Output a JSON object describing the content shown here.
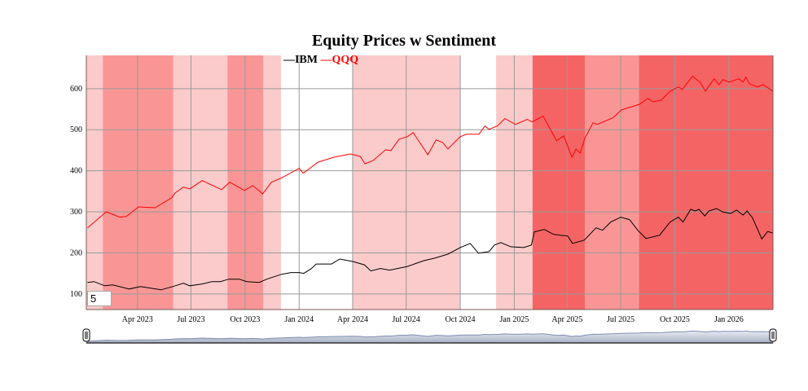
{
  "chart_data": {
    "type": "line",
    "title": "Equity Prices w Sentiment",
    "xlabel": "",
    "ylabel": "",
    "xlim": [
      "2023-01-04",
      "2026-03-17"
    ],
    "ylim": [
      62,
      681
    ],
    "yticks": [
      100,
      200,
      300,
      400,
      500,
      600
    ],
    "xticks": [
      {
        "date": "2023-04-01",
        "label": "Apr 2023"
      },
      {
        "date": "2023-07-01",
        "label": "Jul 2023"
      },
      {
        "date": "2023-10-01",
        "label": "Oct 2023"
      },
      {
        "date": "2024-01-01",
        "label": "Jan 2024"
      },
      {
        "date": "2024-04-01",
        "label": "Apr 2024"
      },
      {
        "date": "2024-07-01",
        "label": "Jul 2024"
      },
      {
        "date": "2024-10-01",
        "label": "Oct 2024"
      },
      {
        "date": "2025-01-01",
        "label": "Jan 2025"
      },
      {
        "date": "2025-04-01",
        "label": "Apr 2025"
      },
      {
        "date": "2025-07-01",
        "label": "Jul 2025"
      },
      {
        "date": "2025-10-01",
        "label": "Oct 2025"
      },
      {
        "date": "2026-01-01",
        "label": "Jan 2026"
      }
    ],
    "grid": true,
    "legend_placement": "top",
    "roll_period": "5",
    "range_selector": true,
    "sentiment_colors": {
      "low": "#facbca",
      "medium": "#f99695",
      "high": "#f56464"
    },
    "sentiment_bands": [
      {
        "start": "2023-01-04",
        "end": "2023-02-01",
        "level": "low"
      },
      {
        "start": "2023-02-01",
        "end": "2023-06-01",
        "level": "medium"
      },
      {
        "start": "2023-06-01",
        "end": "2023-09-01",
        "level": "low"
      },
      {
        "start": "2023-09-01",
        "end": "2023-11-01",
        "level": "medium"
      },
      {
        "start": "2023-11-01",
        "end": "2023-12-01",
        "level": "low"
      },
      {
        "start": "2024-04-01",
        "end": "2024-10-01",
        "level": "low"
      },
      {
        "start": "2024-12-01",
        "end": "2025-02-01",
        "level": "low"
      },
      {
        "start": "2025-02-01",
        "end": "2025-05-01",
        "level": "high"
      },
      {
        "start": "2025-05-01",
        "end": "2025-08-01",
        "level": "medium"
      },
      {
        "start": "2025-08-01",
        "end": "2026-03-17",
        "level": "high"
      }
    ],
    "series": [
      {
        "name": "IBM",
        "color": "#000000",
        "points": [
          [
            "2023-01-06",
            128
          ],
          [
            "2023-01-17",
            130
          ],
          [
            "2023-02-04",
            120
          ],
          [
            "2023-02-18",
            122
          ],
          [
            "2023-03-18",
            112
          ],
          [
            "2023-04-06",
            118
          ],
          [
            "2023-05-11",
            110
          ],
          [
            "2023-05-31",
            118
          ],
          [
            "2023-06-18",
            126
          ],
          [
            "2023-06-29",
            120
          ],
          [
            "2023-07-19",
            124
          ],
          [
            "2023-08-06",
            130
          ],
          [
            "2023-08-20",
            130
          ],
          [
            "2023-09-03",
            136
          ],
          [
            "2023-09-21",
            136
          ],
          [
            "2023-10-04",
            130
          ],
          [
            "2023-10-25",
            128
          ],
          [
            "2023-11-07",
            136
          ],
          [
            "2023-12-02",
            148
          ],
          [
            "2023-12-18",
            152
          ],
          [
            "2024-01-01",
            152
          ],
          [
            "2024-01-09",
            150
          ],
          [
            "2024-01-22",
            162
          ],
          [
            "2024-01-30",
            173
          ],
          [
            "2024-02-25",
            173
          ],
          [
            "2024-03-10",
            185
          ],
          [
            "2024-04-01",
            179
          ],
          [
            "2024-04-21",
            171
          ],
          [
            "2024-05-02",
            156
          ],
          [
            "2024-05-18",
            162
          ],
          [
            "2024-06-03",
            158
          ],
          [
            "2024-07-03",
            167
          ],
          [
            "2024-07-31",
            181
          ],
          [
            "2024-08-18",
            187
          ],
          [
            "2024-09-10",
            197
          ],
          [
            "2024-10-01",
            213
          ],
          [
            "2024-10-18",
            223
          ],
          [
            "2024-11-01",
            199
          ],
          [
            "2024-11-19",
            203
          ],
          [
            "2024-11-28",
            219
          ],
          [
            "2024-12-09",
            225
          ],
          [
            "2024-12-26",
            215
          ],
          [
            "2025-01-17",
            213
          ],
          [
            "2025-01-30",
            219
          ],
          [
            "2025-02-04",
            251
          ],
          [
            "2025-02-21",
            257
          ],
          [
            "2025-03-09",
            245
          ],
          [
            "2025-04-02",
            241
          ],
          [
            "2025-04-10",
            223
          ],
          [
            "2025-04-30",
            231
          ],
          [
            "2025-05-20",
            261
          ],
          [
            "2025-05-31",
            255
          ],
          [
            "2025-06-14",
            275
          ],
          [
            "2025-07-01",
            287
          ],
          [
            "2025-07-16",
            281
          ],
          [
            "2025-07-30",
            255
          ],
          [
            "2025-08-13",
            235
          ],
          [
            "2025-09-05",
            243
          ],
          [
            "2025-09-23",
            275
          ],
          [
            "2025-10-07",
            287
          ],
          [
            "2025-10-15",
            275
          ],
          [
            "2025-10-28",
            306
          ],
          [
            "2025-11-05",
            302
          ],
          [
            "2025-11-11",
            306
          ],
          [
            "2025-11-21",
            290
          ],
          [
            "2025-11-28",
            302
          ],
          [
            "2025-12-11",
            308
          ],
          [
            "2025-12-21",
            300
          ],
          [
            "2026-01-04",
            296
          ],
          [
            "2026-01-14",
            304
          ],
          [
            "2026-01-25",
            292
          ],
          [
            "2026-02-01",
            302
          ],
          [
            "2026-02-10",
            286
          ],
          [
            "2026-02-26",
            234
          ],
          [
            "2026-03-08",
            252
          ],
          [
            "2026-03-17",
            248
          ]
        ]
      },
      {
        "name": "QQQ",
        "color": "#ff0000",
        "points": [
          [
            "2023-01-06",
            261
          ],
          [
            "2023-02-07",
            300
          ],
          [
            "2023-03-02",
            287
          ],
          [
            "2023-03-13",
            289
          ],
          [
            "2023-04-03",
            312
          ],
          [
            "2023-05-01",
            310
          ],
          [
            "2023-05-29",
            334
          ],
          [
            "2023-06-04",
            346
          ],
          [
            "2023-06-18",
            360
          ],
          [
            "2023-06-29",
            356
          ],
          [
            "2023-07-20",
            376
          ],
          [
            "2023-08-22",
            354
          ],
          [
            "2023-09-05",
            372
          ],
          [
            "2023-09-30",
            352
          ],
          [
            "2023-10-14",
            364
          ],
          [
            "2023-10-31",
            344
          ],
          [
            "2023-11-15",
            372
          ],
          [
            "2023-12-04",
            384
          ],
          [
            "2024-01-01",
            406
          ],
          [
            "2024-01-08",
            394
          ],
          [
            "2024-02-02",
            421
          ],
          [
            "2024-02-29",
            433
          ],
          [
            "2024-03-28",
            441
          ],
          [
            "2024-04-14",
            435
          ],
          [
            "2024-04-22",
            417
          ],
          [
            "2024-05-06",
            425
          ],
          [
            "2024-05-27",
            451
          ],
          [
            "2024-06-05",
            449
          ],
          [
            "2024-06-19",
            477
          ],
          [
            "2024-07-03",
            483
          ],
          [
            "2024-07-13",
            493
          ],
          [
            "2024-08-07",
            439
          ],
          [
            "2024-08-21",
            475
          ],
          [
            "2024-09-01",
            469
          ],
          [
            "2024-09-10",
            453
          ],
          [
            "2024-10-01",
            483
          ],
          [
            "2024-10-12",
            489
          ],
          [
            "2024-11-02",
            489
          ],
          [
            "2024-11-12",
            509
          ],
          [
            "2024-11-19",
            501
          ],
          [
            "2024-12-03",
            509
          ],
          [
            "2024-12-16",
            527
          ],
          [
            "2025-01-03",
            513
          ],
          [
            "2025-01-23",
            525
          ],
          [
            "2025-01-31",
            519
          ],
          [
            "2025-02-19",
            533
          ],
          [
            "2025-02-28",
            509
          ],
          [
            "2025-03-14",
            473
          ],
          [
            "2025-03-26",
            485
          ],
          [
            "2025-04-09",
            433
          ],
          [
            "2025-04-16",
            453
          ],
          [
            "2025-04-23",
            443
          ],
          [
            "2025-05-01",
            479
          ],
          [
            "2025-05-15",
            517
          ],
          [
            "2025-05-22",
            513
          ],
          [
            "2025-06-18",
            529
          ],
          [
            "2025-07-02",
            548
          ],
          [
            "2025-08-02",
            562
          ],
          [
            "2025-08-16",
            576
          ],
          [
            "2025-08-25",
            568
          ],
          [
            "2025-09-08",
            572
          ],
          [
            "2025-09-23",
            594
          ],
          [
            "2025-10-07",
            604
          ],
          [
            "2025-10-14",
            598
          ],
          [
            "2025-10-31",
            630
          ],
          [
            "2025-11-13",
            616
          ],
          [
            "2025-11-22",
            594
          ],
          [
            "2025-12-07",
            624
          ],
          [
            "2025-12-15",
            610
          ],
          [
            "2025-12-22",
            622
          ],
          [
            "2026-01-01",
            616
          ],
          [
            "2026-01-18",
            624
          ],
          [
            "2026-01-25",
            616
          ],
          [
            "2026-01-30",
            628
          ],
          [
            "2026-02-05",
            612
          ],
          [
            "2026-02-19",
            604
          ],
          [
            "2026-02-28",
            610
          ],
          [
            "2026-03-17",
            594
          ]
        ]
      }
    ]
  }
}
